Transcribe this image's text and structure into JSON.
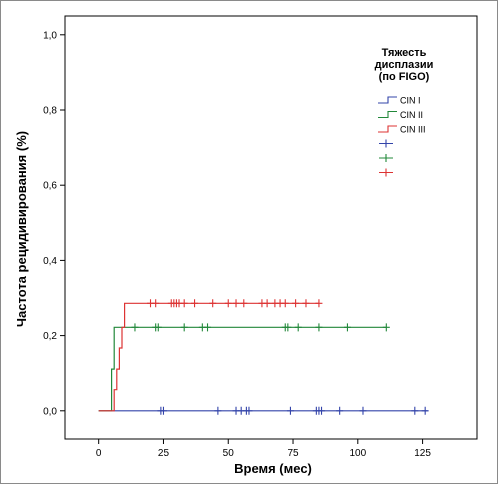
{
  "chart_data": {
    "type": "line",
    "title": "",
    "xlabel": "Время (мес)",
    "ylabel": "Частота рецидивирования (%)",
    "xlim": [
      -13,
      146
    ],
    "ylim": [
      -0.075,
      1.05
    ],
    "x_ticks": [
      0,
      25,
      50,
      75,
      100,
      125
    ],
    "x_tick_labels": [
      "0",
      "25",
      "50",
      "75",
      "100",
      "125"
    ],
    "y_ticks": [
      0.0,
      0.2,
      0.4,
      0.6,
      0.8,
      1.0
    ],
    "y_tick_labels": [
      "0,0",
      "0,2",
      "0,4",
      "0,6",
      "0,8",
      "1,0"
    ],
    "grid": false,
    "legend": {
      "title_lines": [
        "Тяжесть",
        "дисплазии",
        "(по FIGO)"
      ],
      "placement": "top-right"
    },
    "series": [
      {
        "name": "CIN I",
        "color": "#3344aa",
        "steps": [
          [
            0,
            0
          ],
          [
            127,
            0
          ]
        ],
        "censored": [
          24,
          25,
          46,
          53,
          55,
          57,
          58,
          74,
          84,
          85,
          86,
          93,
          102,
          122,
          126
        ]
      },
      {
        "name": "CIN II",
        "color": "#22883a",
        "steps": [
          [
            0,
            0
          ],
          [
            5,
            0
          ],
          [
            5,
            0.111
          ],
          [
            6,
            0.111
          ],
          [
            6,
            0.222
          ],
          [
            111,
            0.222
          ]
        ],
        "censored": [
          14,
          22,
          23,
          33,
          40,
          42,
          72,
          73,
          77,
          85,
          96,
          111
        ]
      },
      {
        "name": "CIN III",
        "color": "#dd3333",
        "steps": [
          [
            0,
            0
          ],
          [
            6,
            0
          ],
          [
            6,
            0.056
          ],
          [
            7,
            0.056
          ],
          [
            7,
            0.111
          ],
          [
            8,
            0.111
          ],
          [
            8,
            0.167
          ],
          [
            9,
            0.167
          ],
          [
            9,
            0.222
          ],
          [
            10,
            0.222
          ],
          [
            10,
            0.286
          ],
          [
            85,
            0.286
          ]
        ],
        "censored": [
          20,
          22,
          28,
          29,
          30,
          31,
          33,
          37,
          44,
          50,
          53,
          56,
          63,
          65,
          68,
          70,
          72,
          76,
          80,
          85
        ]
      }
    ]
  }
}
